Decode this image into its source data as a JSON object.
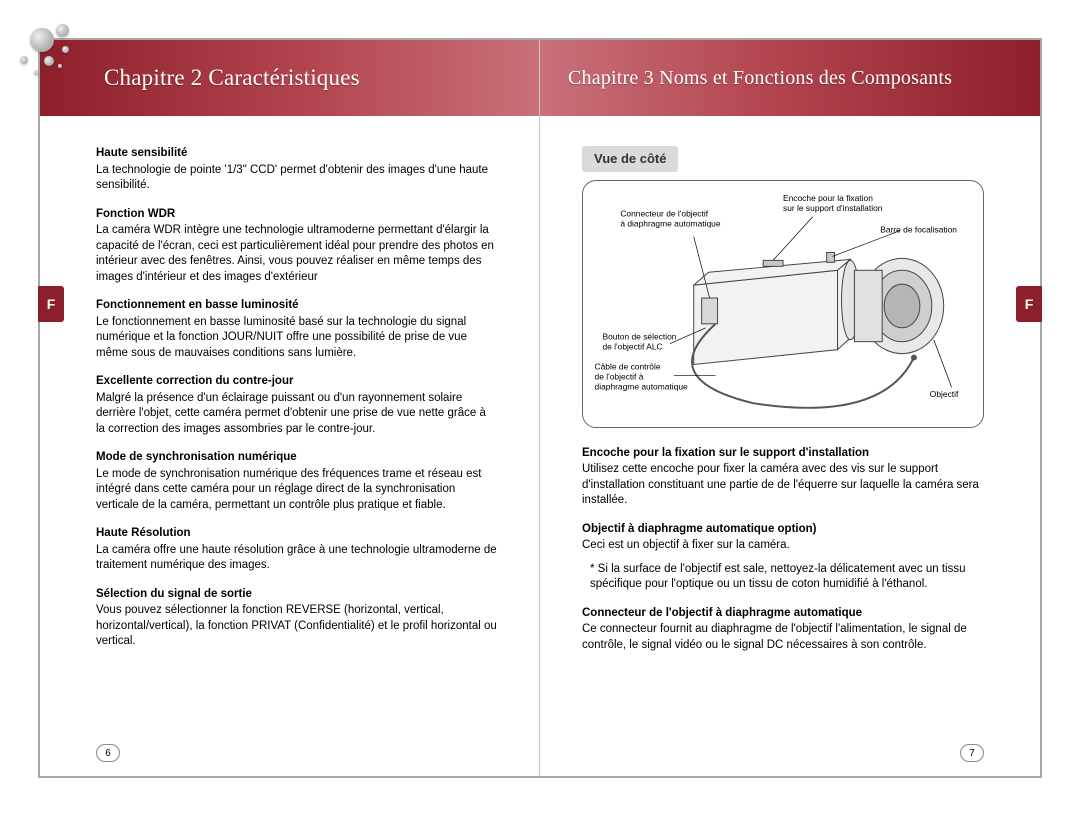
{
  "left": {
    "chapter_title": "Chapitre 2   Caractéristiques",
    "tab": "F",
    "page_number": "6",
    "sections": [
      {
        "title": "Haute sensibilité",
        "body": "La technologie de pointe '1/3\" CCD' permet d'obtenir des images d'une haute sensibilité."
      },
      {
        "title": "Fonction WDR",
        "body": "La caméra WDR intègre une technologie ultramoderne permettant d'élargir la capacité de l'écran, ceci est particulièrement idéal pour prendre des photos en intérieur avec des fenêtres. Ainsi, vous pouvez réaliser en même temps des images d'intérieur et des images d'extérieur"
      },
      {
        "title": "Fonctionnement en basse luminosité",
        "body": "Le fonctionnement en basse luminosité basé sur la technologie du signal numérique et la fonction JOUR/NUIT offre une possibilité de prise de vue même sous de mauvaises conditions sans lumière."
      },
      {
        "title": "Excellente correction du contre-jour",
        "body": "Malgré la présence d'un éclairage puissant ou d'un rayonnement solaire derrière l'objet, cette caméra permet d'obtenir une prise de vue nette grâce à la correction des images assombries par le contre-jour."
      },
      {
        "title": "Mode de synchronisation numérique",
        "body": "Le mode de synchronisation numérique des fréquences trame et réseau est intégré dans cette caméra  pour un réglage direct de la synchronisation verticale de la caméra, permettant un contrôle plus pratique et fiable."
      },
      {
        "title": "Haute Résolution",
        "body": "La caméra offre une haute résolution grâce à une technologie ultramoderne de traitement numérique des images."
      },
      {
        "title": "Sélection du signal de sortie",
        "body": "Vous pouvez sélectionner la fonction REVERSE (horizontal, vertical, horizontal/vertical), la fonction PRIVAT (Confidentialité) et le profil horizontal ou vertical."
      }
    ]
  },
  "right": {
    "chapter_title": "Chapitre 3   Noms et Fonctions des Composants",
    "tab": "F",
    "page_number": "7",
    "side_heading": "Vue de côté",
    "diagram_labels": {
      "connector": "Connecteur de l'objectif à diaphragme automatique",
      "notch": "Encoche pour la fixation sur le support d'installation",
      "focus_bar": "Barre de focalisation",
      "alc_button": "Bouton de sélection de l'objectif ALC",
      "control_cable": "Câble de contrôle de l'objectif à diaphragme automatique",
      "lens": "Objectif"
    },
    "sections": [
      {
        "title": "Encoche pour la fixation sur le support d'installation",
        "body": "Utilisez cette encoche pour fixer la caméra avec des vis sur le support d'installation constituant une partie de de l'équerre sur laquelle la caméra sera installée."
      },
      {
        "title": "Objectif à diaphragme automatique option)",
        "body": "Ceci est un objectif à fixer sur la caméra.",
        "note": "* Si la surface de l'objectif est sale, nettoyez-la délicatement avec un tissu spécifique pour l'optique ou un tissu de coton humidifié à l'éthanol."
      },
      {
        "title": "Connecteur de l'objectif à diaphragme automatique",
        "body": "Ce connecteur fournit au diaphragme de l'objectif l'alimentation, le signal de contrôle, le signal vidéo ou le signal DC nécessaires à son contrôle."
      }
    ]
  },
  "colors": {
    "band_dark": "#8c1f2a",
    "band_light": "#c9707a",
    "border": "#a8a8a8",
    "gray_box": "#dadada"
  }
}
